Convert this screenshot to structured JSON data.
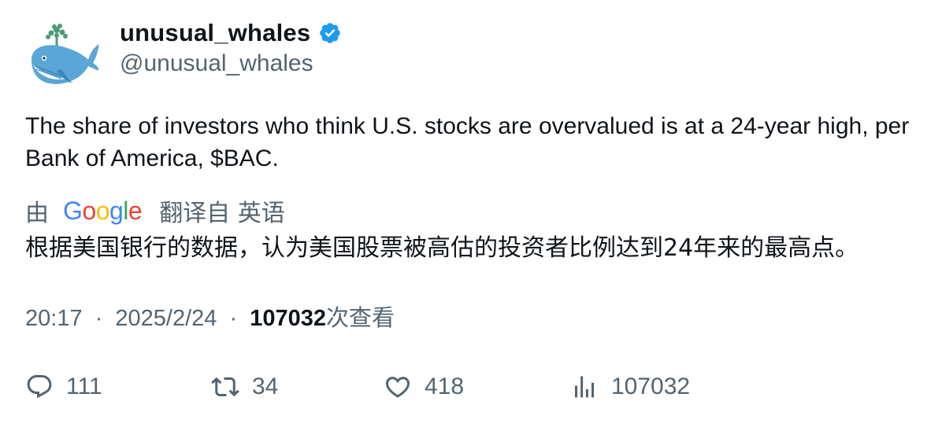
{
  "author": {
    "display_name": "unusual_whales",
    "handle": "@unusual_whales",
    "verified": true,
    "avatar_icon": "whale-avatar-icon"
  },
  "tweet": {
    "text": "The share of investors who think U.S. stocks are overvalued is at a 24-year high, per Bank of America, $BAC."
  },
  "translation": {
    "prefix": "由",
    "provider": "Google",
    "suffix": "翻译自 英语",
    "text": "根据美国银行的数据，认为美国股票被高估的投资者比例达到24年来的最高点。"
  },
  "meta": {
    "time": "20:17",
    "separator": "·",
    "date": "2025/2/24",
    "views_count": "107032",
    "views_label": "次查看"
  },
  "actions": {
    "replies": "111",
    "retweets": "34",
    "likes": "418",
    "views": "107032"
  },
  "colors": {
    "text_primary": "#0f1419",
    "text_secondary": "#536471",
    "verified_blue": "#1d9bf0"
  }
}
